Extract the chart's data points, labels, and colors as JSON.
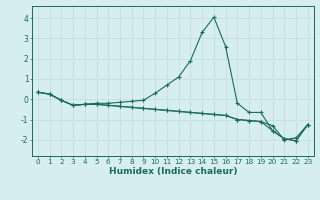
{
  "xlabel": "Humidex (Indice chaleur)",
  "x": [
    0,
    1,
    2,
    3,
    4,
    5,
    6,
    7,
    8,
    9,
    10,
    11,
    12,
    13,
    14,
    15,
    16,
    17,
    18,
    19,
    20,
    21,
    22,
    23
  ],
  "line1": [
    0.35,
    0.25,
    -0.05,
    -0.3,
    -0.25,
    -0.2,
    -0.2,
    -0.15,
    -0.1,
    -0.05,
    0.3,
    0.7,
    1.1,
    1.9,
    3.3,
    4.05,
    2.6,
    -0.2,
    -0.65,
    -0.65,
    -1.55,
    -1.95,
    -2.05,
    -1.25
  ],
  "line2": [
    0.35,
    0.25,
    -0.05,
    -0.3,
    -0.25,
    -0.25,
    -0.3,
    -0.35,
    -0.4,
    -0.45,
    -0.5,
    -0.55,
    -0.6,
    -0.65,
    -0.7,
    -0.75,
    -0.8,
    -1.0,
    -1.05,
    -1.1,
    -1.3,
    -2.0,
    -1.9,
    -1.25
  ],
  "line3": [
    0.35,
    0.25,
    -0.05,
    -0.3,
    -0.25,
    -0.25,
    -0.3,
    -0.35,
    -0.4,
    -0.45,
    -0.5,
    -0.55,
    -0.6,
    -0.65,
    -0.7,
    -0.75,
    -0.8,
    -1.0,
    -1.05,
    -1.1,
    -1.55,
    -1.95,
    -2.05,
    -1.25
  ],
  "line_color": "#1a6b5a",
  "bg_color": "#d6eef0",
  "grid_color": "#c8e0e4",
  "ylim": [
    -2.8,
    4.6
  ],
  "xlim": [
    -0.5,
    23.5
  ],
  "yticks": [
    -2,
    -1,
    0,
    1,
    2,
    3,
    4
  ],
  "xticks": [
    0,
    1,
    2,
    3,
    4,
    5,
    6,
    7,
    8,
    9,
    10,
    11,
    12,
    13,
    14,
    15,
    16,
    17,
    18,
    19,
    20,
    21,
    22,
    23
  ],
  "tick_fontsize": 5.2,
  "xlabel_fontsize": 6.5
}
